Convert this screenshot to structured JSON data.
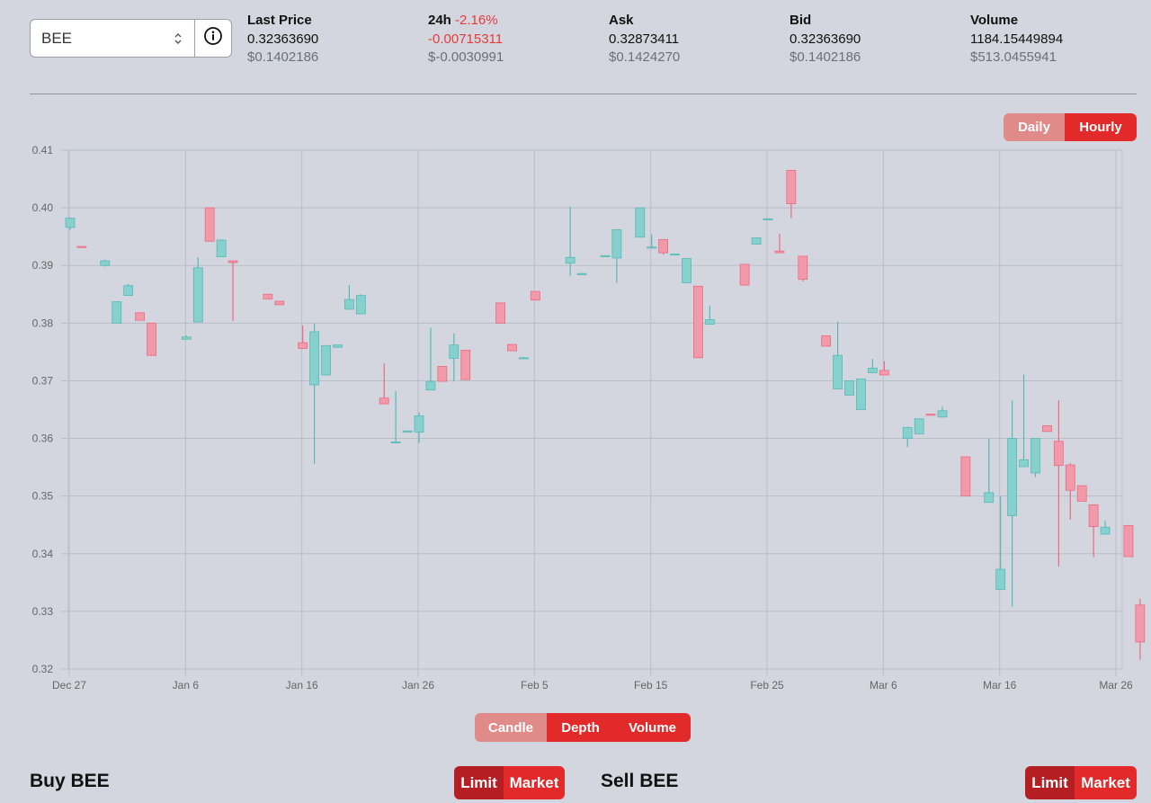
{
  "token": {
    "selected": "BEE"
  },
  "stats": {
    "last_price": {
      "label": "Last Price",
      "value": "0.32363690",
      "usd": "$0.1402186"
    },
    "change": {
      "label": "24h",
      "percent": "-2.16%",
      "value": "-0.00715311",
      "usd": "$-0.0030991"
    },
    "ask": {
      "label": "Ask",
      "value": "0.32873411",
      "usd": "$0.1424270"
    },
    "bid": {
      "label": "Bid",
      "value": "0.32363690",
      "usd": "$0.1402186"
    },
    "volume": {
      "label": "Volume",
      "value": "1184.15449894",
      "usd": "$513.0455941"
    }
  },
  "interval_toggle": {
    "daily": "Daily",
    "hourly": "Hourly",
    "active": "Hourly"
  },
  "view_toggle": {
    "candle": "Candle",
    "depth": "Depth",
    "volume": "Volume",
    "active": "Candle"
  },
  "buy": {
    "title": "Buy BEE",
    "limit": "Limit",
    "market": "Market"
  },
  "sell": {
    "title": "Sell BEE",
    "limit": "Limit",
    "market": "Market"
  },
  "colors": {
    "up": "#86d0ce",
    "down": "#f29aa9",
    "up_stroke": "#58b9b7",
    "down_stroke": "#ea6b82"
  },
  "chart_data": {
    "type": "candlestick",
    "x_ticks": [
      "Dec 27",
      "Jan 6",
      "Jan 16",
      "Jan 26",
      "Feb 5",
      "Feb 15",
      "Feb 25",
      "Mar 6",
      "Mar 16",
      "Mar 26"
    ],
    "y_ticks": [
      "0.41",
      "0.40",
      "0.39",
      "0.38",
      "0.37",
      "0.36",
      "0.35",
      "0.34",
      "0.33",
      "0.32"
    ],
    "ylim": [
      0.32,
      0.41
    ],
    "x_start": "Dec 27",
    "x_end": "Mar 26",
    "grid": true,
    "candles": [
      {
        "x": 0,
        "o": 0.3966,
        "h": 0.3983,
        "l": 0.3962,
        "c": 0.3982
      },
      {
        "x": 1,
        "o": 0.3933,
        "h": 0.3933,
        "l": 0.3932,
        "c": 0.3932
      },
      {
        "x": 3,
        "o": 0.39,
        "h": 0.391,
        "l": 0.3898,
        "c": 0.3908
      },
      {
        "x": 4,
        "o": 0.38,
        "h": 0.3838,
        "l": 0.38,
        "c": 0.3837
      },
      {
        "x": 5,
        "o": 0.3848,
        "h": 0.3868,
        "l": 0.3848,
        "c": 0.3865
      },
      {
        "x": 6,
        "o": 0.3818,
        "h": 0.3818,
        "l": 0.3805,
        "c": 0.3805
      },
      {
        "x": 7,
        "o": 0.38,
        "h": 0.38,
        "l": 0.3744,
        "c": 0.3744
      },
      {
        "x": 10,
        "o": 0.3772,
        "h": 0.3778,
        "l": 0.3772,
        "c": 0.3776
      },
      {
        "x": 11,
        "o": 0.3802,
        "h": 0.3914,
        "l": 0.3802,
        "c": 0.3896
      },
      {
        "x": 12,
        "o": 0.4,
        "h": 0.4,
        "l": 0.3942,
        "c": 0.3942
      },
      {
        "x": 13,
        "o": 0.3915,
        "h": 0.3945,
        "l": 0.3915,
        "c": 0.3944
      },
      {
        "x": 14,
        "o": 0.3908,
        "h": 0.3908,
        "l": 0.3804,
        "c": 0.3905
      },
      {
        "x": 17,
        "o": 0.385,
        "h": 0.385,
        "l": 0.3842,
        "c": 0.3842
      },
      {
        "x": 18,
        "o": 0.3838,
        "h": 0.3838,
        "l": 0.3832,
        "c": 0.3832
      },
      {
        "x": 20,
        "o": 0.3766,
        "h": 0.3796,
        "l": 0.3756,
        "c": 0.3756
      },
      {
        "x": 21,
        "o": 0.3693,
        "h": 0.38,
        "l": 0.3556,
        "c": 0.3785
      },
      {
        "x": 22,
        "o": 0.371,
        "h": 0.3762,
        "l": 0.371,
        "c": 0.3761
      },
      {
        "x": 23,
        "o": 0.3758,
        "h": 0.3762,
        "l": 0.3758,
        "c": 0.3762
      },
      {
        "x": 24,
        "o": 0.3824,
        "h": 0.3866,
        "l": 0.3824,
        "c": 0.3841
      },
      {
        "x": 25,
        "o": 0.3816,
        "h": 0.385,
        "l": 0.3816,
        "c": 0.3848
      },
      {
        "x": 27,
        "o": 0.367,
        "h": 0.373,
        "l": 0.366,
        "c": 0.366
      },
      {
        "x": 28,
        "o": 0.3594,
        "h": 0.3682,
        "l": 0.3592,
        "c": 0.3594
      },
      {
        "x": 29,
        "o": 0.3613,
        "h": 0.3613,
        "l": 0.3612,
        "c": 0.3613
      },
      {
        "x": 30,
        "o": 0.3611,
        "h": 0.3645,
        "l": 0.3592,
        "c": 0.3639
      },
      {
        "x": 31,
        "o": 0.3684,
        "h": 0.3792,
        "l": 0.3684,
        "c": 0.3699
      },
      {
        "x": 32,
        "o": 0.3725,
        "h": 0.3725,
        "l": 0.3699,
        "c": 0.3699
      },
      {
        "x": 33,
        "o": 0.3739,
        "h": 0.3782,
        "l": 0.3699,
        "c": 0.3762
      },
      {
        "x": 34,
        "o": 0.3753,
        "h": 0.3753,
        "l": 0.3702,
        "c": 0.3702
      },
      {
        "x": 37,
        "o": 0.3835,
        "h": 0.3835,
        "l": 0.38,
        "c": 0.38
      },
      {
        "x": 38,
        "o": 0.3763,
        "h": 0.3763,
        "l": 0.3752,
        "c": 0.3752
      },
      {
        "x": 39,
        "o": 0.374,
        "h": 0.3741,
        "l": 0.3739,
        "c": 0.374
      },
      {
        "x": 40,
        "o": 0.3855,
        "h": 0.3855,
        "l": 0.384,
        "c": 0.384
      },
      {
        "x": 43,
        "o": 0.3904,
        "h": 0.4002,
        "l": 0.3882,
        "c": 0.3914
      },
      {
        "x": 44,
        "o": 0.3886,
        "h": 0.3887,
        "l": 0.3885,
        "c": 0.3886
      },
      {
        "x": 46,
        "o": 0.3916,
        "h": 0.3918,
        "l": 0.3916,
        "c": 0.3917
      },
      {
        "x": 47,
        "o": 0.3913,
        "h": 0.3962,
        "l": 0.387,
        "c": 0.3962
      },
      {
        "x": 49,
        "o": 0.3949,
        "h": 0.4,
        "l": 0.3949,
        "c": 0.4
      },
      {
        "x": 50,
        "o": 0.3932,
        "h": 0.3954,
        "l": 0.3932,
        "c": 0.3932
      },
      {
        "x": 51,
        "o": 0.3945,
        "h": 0.3945,
        "l": 0.3919,
        "c": 0.3922
      },
      {
        "x": 52,
        "o": 0.3918,
        "h": 0.392,
        "l": 0.3918,
        "c": 0.392
      },
      {
        "x": 53,
        "o": 0.387,
        "h": 0.3912,
        "l": 0.387,
        "c": 0.3912
      },
      {
        "x": 54,
        "o": 0.3864,
        "h": 0.3864,
        "l": 0.374,
        "c": 0.374
      },
      {
        "x": 55,
        "o": 0.3798,
        "h": 0.383,
        "l": 0.3798,
        "c": 0.3806
      },
      {
        "x": 58,
        "o": 0.3902,
        "h": 0.3902,
        "l": 0.3866,
        "c": 0.3866
      },
      {
        "x": 59,
        "o": 0.3937,
        "h": 0.3948,
        "l": 0.3937,
        "c": 0.3948
      },
      {
        "x": 60,
        "o": 0.398,
        "h": 0.3982,
        "l": 0.3979,
        "c": 0.3981
      },
      {
        "x": 61,
        "o": 0.3925,
        "h": 0.3955,
        "l": 0.3922,
        "c": 0.3922
      },
      {
        "x": 62,
        "o": 0.4065,
        "h": 0.4065,
        "l": 0.3982,
        "c": 0.4007
      },
      {
        "x": 63,
        "o": 0.3916,
        "h": 0.3916,
        "l": 0.3872,
        "c": 0.3876
      },
      {
        "x": 65,
        "o": 0.3778,
        "h": 0.3778,
        "l": 0.376,
        "c": 0.376
      },
      {
        "x": 66,
        "o": 0.3686,
        "h": 0.3803,
        "l": 0.3686,
        "c": 0.3744
      },
      {
        "x": 67,
        "o": 0.3675,
        "h": 0.37,
        "l": 0.3675,
        "c": 0.37
      },
      {
        "x": 68,
        "o": 0.365,
        "h": 0.3703,
        "l": 0.365,
        "c": 0.3703
      },
      {
        "x": 69,
        "o": 0.3714,
        "h": 0.3738,
        "l": 0.3714,
        "c": 0.3722
      },
      {
        "x": 70,
        "o": 0.3718,
        "h": 0.3734,
        "l": 0.371,
        "c": 0.371
      },
      {
        "x": 72,
        "o": 0.36,
        "h": 0.362,
        "l": 0.3585,
        "c": 0.3619
      },
      {
        "x": 73,
        "o": 0.3608,
        "h": 0.3634,
        "l": 0.3608,
        "c": 0.3634
      },
      {
        "x": 74,
        "o": 0.3642,
        "h": 0.3642,
        "l": 0.364,
        "c": 0.364
      },
      {
        "x": 75,
        "o": 0.3637,
        "h": 0.3655,
        "l": 0.3637,
        "c": 0.3648
      },
      {
        "x": 77,
        "o": 0.3568,
        "h": 0.3568,
        "l": 0.35,
        "c": 0.35
      },
      {
        "x": 79,
        "o": 0.3489,
        "h": 0.36,
        "l": 0.3489,
        "c": 0.3506
      },
      {
        "x": 80,
        "o": 0.3338,
        "h": 0.35,
        "l": 0.3338,
        "c": 0.3373
      },
      {
        "x": 81,
        "o": 0.3466,
        "h": 0.3666,
        "l": 0.3308,
        "c": 0.36
      },
      {
        "x": 82,
        "o": 0.3551,
        "h": 0.3711,
        "l": 0.3551,
        "c": 0.3563
      },
      {
        "x": 83,
        "o": 0.354,
        "h": 0.36,
        "l": 0.3533,
        "c": 0.36
      },
      {
        "x": 84,
        "o": 0.3622,
        "h": 0.3622,
        "l": 0.3612,
        "c": 0.3612
      },
      {
        "x": 85,
        "o": 0.3595,
        "h": 0.3666,
        "l": 0.3378,
        "c": 0.3553
      },
      {
        "x": 86,
        "o": 0.3554,
        "h": 0.3557,
        "l": 0.3459,
        "c": 0.351
      },
      {
        "x": 87,
        "o": 0.3518,
        "h": 0.3518,
        "l": 0.3491,
        "c": 0.3491
      },
      {
        "x": 88,
        "o": 0.3485,
        "h": 0.3485,
        "l": 0.3394,
        "c": 0.3447
      },
      {
        "x": 89,
        "o": 0.3434,
        "h": 0.3457,
        "l": 0.3434,
        "c": 0.3446
      },
      {
        "x": 91,
        "o": 0.3449,
        "h": 0.3449,
        "l": 0.3395,
        "c": 0.3395
      },
      {
        "x": 92,
        "o": 0.3311,
        "h": 0.3322,
        "l": 0.3216,
        "c": 0.3247
      }
    ]
  }
}
